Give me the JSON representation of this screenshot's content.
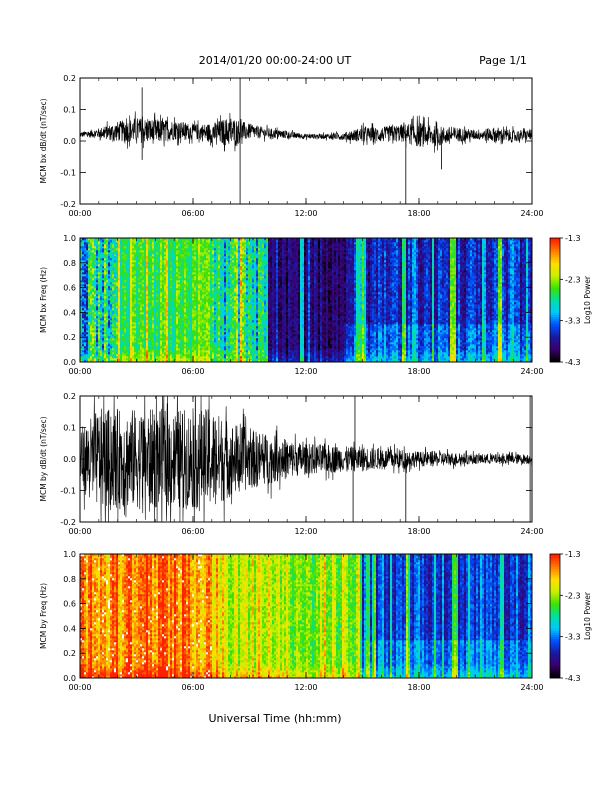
{
  "header": {
    "title": "2014/01/20  00:00-24:00 UT",
    "page": "Page 1/1"
  },
  "xlabel": "Universal Time (hh:mm)",
  "colors": {
    "trace": "#000000",
    "colormap": [
      "#000000",
      "#3a0070",
      "#1a1aa0",
      "#0050ff",
      "#00c8ff",
      "#00e0a0",
      "#40e000",
      "#c8f000",
      "#ffe000",
      "#ff8000",
      "#ff2000",
      "#ffffff"
    ]
  },
  "chart_data": [
    {
      "type": "line",
      "ylabel": "MCM bx dB/dt (nT/sec)",
      "ylim": [
        -0.2,
        0.2
      ],
      "yticks": [
        "-0.2",
        "-0.1",
        "0.0",
        "0.1",
        "0.2"
      ],
      "xlim": [
        0,
        24
      ],
      "xticks": [
        "00:00",
        "06:00",
        "12:00",
        "18:00",
        "24:00"
      ],
      "series": [
        {
          "x": [
            0,
            1,
            2,
            3,
            4,
            5,
            6,
            7,
            8,
            9,
            10,
            11,
            12,
            13,
            14,
            15,
            16,
            17,
            18,
            19,
            20,
            21,
            22,
            23,
            24
          ],
          "values": [
            0.02,
            0.025,
            0.03,
            0.035,
            0.03,
            0.035,
            0.03,
            0.025,
            0.03,
            0.03,
            0.025,
            0.02,
            0.015,
            0.015,
            0.015,
            0.02,
            0.02,
            0.025,
            0.02,
            0.015,
            0.02,
            0.02,
            0.02,
            0.015,
            0.02
          ],
          "envelope": [
            0.01,
            0.02,
            0.04,
            0.05,
            0.05,
            0.04,
            0.03,
            0.04,
            0.06,
            0.03,
            0.02,
            0.015,
            0.01,
            0.01,
            0.015,
            0.03,
            0.03,
            0.035,
            0.05,
            0.04,
            0.03,
            0.02,
            0.03,
            0.025,
            0.02
          ]
        }
      ],
      "spikes": [
        {
          "t": 3.3,
          "y": 0.17
        },
        {
          "t": 3.3,
          "y": -0.06
        },
        {
          "t": 8.5,
          "y": 0.22
        },
        {
          "t": 8.5,
          "y": -0.22
        },
        {
          "t": 17.3,
          "y": -0.2
        },
        {
          "t": 19.2,
          "y": -0.09
        }
      ]
    },
    {
      "type": "heatmap",
      "ylabel": "MCM bx Freq (Hz)",
      "ylim": [
        0,
        1
      ],
      "yticks": [
        "0.0",
        "0.2",
        "0.4",
        "0.6",
        "0.8",
        "1.0"
      ],
      "xlim": [
        0,
        24
      ],
      "xticks": [
        "00:00",
        "06:00",
        "12:00",
        "18:00",
        "24:00"
      ],
      "colorbar": {
        "label": "Log10 Power",
        "min": -4.3,
        "max": -1.3,
        "ticks": [
          "-1.3",
          "-2.3",
          "-3.3",
          "-4.3"
        ]
      },
      "segments": [
        {
          "t0": 0,
          "t1": 2,
          "level": 0.45,
          "var": 0.2
        },
        {
          "t0": 2,
          "t1": 7,
          "level": 0.58,
          "var": 0.1
        },
        {
          "t0": 7,
          "t1": 10,
          "level": 0.45,
          "var": 0.15
        },
        {
          "t0": 10,
          "t1": 14.5,
          "level": 0.12,
          "var": 0.08
        },
        {
          "t0": 14.5,
          "t1": 24,
          "level": 0.22,
          "var": 0.1
        }
      ],
      "streaks": [
        8.3,
        8.6,
        11.8,
        14.8,
        15.0,
        17.2,
        19.8,
        22.3
      ]
    },
    {
      "type": "line",
      "ylabel": "MCM by dB/dt (nT/sec)",
      "ylim": [
        -0.2,
        0.2
      ],
      "yticks": [
        "-0.2",
        "-0.1",
        "0.0",
        "0.1",
        "0.2"
      ],
      "xlim": [
        0,
        24
      ],
      "xticks": [
        "00:00",
        "06:00",
        "12:00",
        "18:00",
        "24:00"
      ],
      "series": [
        {
          "x": [
            0,
            1,
            2,
            3,
            4,
            5,
            6,
            7,
            8,
            9,
            10,
            11,
            12,
            13,
            14,
            15,
            16,
            17,
            18,
            19,
            20,
            21,
            22,
            23,
            24
          ],
          "values": [
            0.0,
            0.0,
            0.0,
            0.0,
            0.0,
            0.0,
            0.0,
            0.0,
            0.0,
            0.0,
            0.0,
            0.0,
            0.0,
            0.0,
            0.0,
            0.0,
            0.0,
            0.0,
            0.0,
            0.0,
            0.0,
            0.0,
            0.0,
            0.0,
            0.0
          ],
          "envelope": [
            0.12,
            0.2,
            0.2,
            0.2,
            0.2,
            0.2,
            0.2,
            0.2,
            0.15,
            0.12,
            0.1,
            0.08,
            0.06,
            0.06,
            0.05,
            0.05,
            0.04,
            0.04,
            0.03,
            0.03,
            0.025,
            0.02,
            0.02,
            0.02,
            0.02
          ]
        }
      ],
      "spikes": [
        {
          "t": 14.5,
          "y": -0.2
        },
        {
          "t": 14.6,
          "y": 0.2
        },
        {
          "t": 17.3,
          "y": -0.2
        },
        {
          "t": 23.9,
          "y": -0.2
        },
        {
          "t": 23.9,
          "y": 0.2
        }
      ]
    },
    {
      "type": "heatmap",
      "ylabel": "MCM by Freq (Hz)",
      "ylim": [
        0,
        1
      ],
      "yticks": [
        "0.0",
        "0.2",
        "0.4",
        "0.6",
        "0.8",
        "1.0"
      ],
      "xlim": [
        0,
        24
      ],
      "xticks": [
        "00:00",
        "06:00",
        "12:00",
        "18:00",
        "24:00"
      ],
      "colorbar": {
        "label": "Log10 Power",
        "min": -4.3,
        "max": -1.3,
        "ticks": [
          "-1.3",
          "-2.3",
          "-3.3",
          "-4.3"
        ]
      },
      "segments": [
        {
          "t0": 0,
          "t1": 7,
          "level": 0.88,
          "var": 0.1
        },
        {
          "t0": 7,
          "t1": 11,
          "level": 0.72,
          "var": 0.1
        },
        {
          "t0": 11,
          "t1": 15,
          "level": 0.65,
          "var": 0.1
        },
        {
          "t0": 15,
          "t1": 24,
          "level": 0.25,
          "var": 0.08
        }
      ],
      "streaks": [
        15.3,
        15.6,
        17.4,
        19.9,
        22.4
      ]
    }
  ]
}
